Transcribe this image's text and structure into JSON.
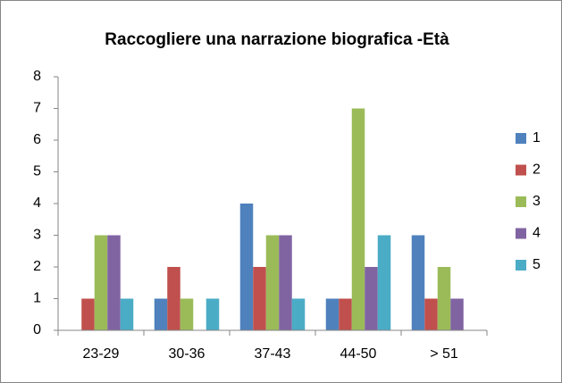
{
  "chart_data": {
    "type": "bar",
    "title": "Raccogliere una narrazione biografica -Età",
    "categories": [
      "23-29",
      "30-36",
      "37-43",
      "44-50",
      "> 51"
    ],
    "series": [
      {
        "name": "1",
        "color": "#4f81bd",
        "values": [
          0,
          1,
          4,
          1,
          3
        ]
      },
      {
        "name": "2",
        "color": "#c0504d",
        "values": [
          1,
          2,
          2,
          1,
          1
        ]
      },
      {
        "name": "3",
        "color": "#9bbb59",
        "values": [
          3,
          1,
          3,
          7,
          2
        ]
      },
      {
        "name": "4",
        "color": "#8064a2",
        "values": [
          3,
          0,
          3,
          2,
          1
        ]
      },
      {
        "name": "5",
        "color": "#4bacc6",
        "values": [
          1,
          1,
          1,
          3,
          0
        ]
      }
    ],
    "ylim": [
      0,
      8
    ],
    "yticks": [
      0,
      1,
      2,
      3,
      4,
      5,
      6,
      7,
      8
    ],
    "grid": false,
    "legend": "right"
  }
}
